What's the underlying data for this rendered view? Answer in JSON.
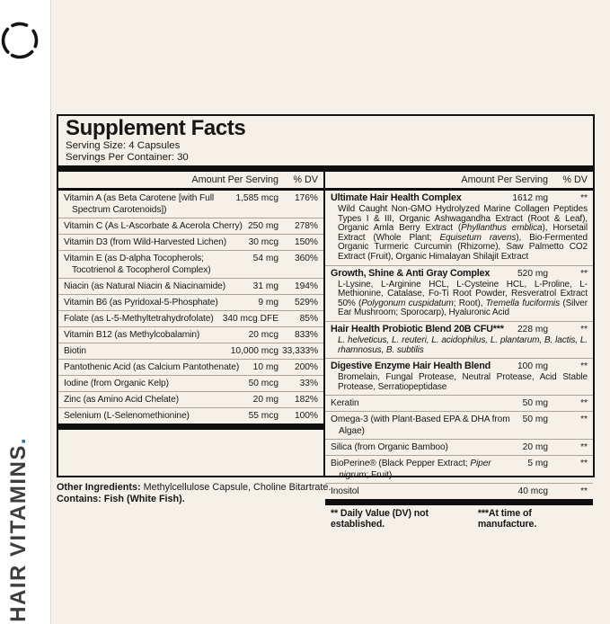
{
  "colors": {
    "background_cream": "#f6f1e8",
    "strip_white": "#ffffff",
    "accent_blue": "#2e65ae",
    "ink": "#161616"
  },
  "brand": {
    "side_label": "HAIR VITAMINS",
    "side_label_period": "."
  },
  "panel": {
    "title": "Supplement Facts",
    "serving_size": "Serving Size: 4 Capsules",
    "servings_per_container": "Servings Per Container: 30",
    "column_header": {
      "amount": "Amount Per Serving",
      "dv": "% DV"
    },
    "left_rows": [
      {
        "name": "Vitamin A (as Beta Carotene [with Full Spectrum Carotenoids])",
        "amount": "1,585 mcg",
        "dv": "176%"
      },
      {
        "name": "Vitamin C (As L-Ascorbate & Acerola Cherry)",
        "amount": "250 mg",
        "dv": "278%"
      },
      {
        "name": "Vitamin D3 (from Wild-Harvested Lichen)",
        "amount": "30 mcg",
        "dv": "150%"
      },
      {
        "name": "Vitamin E (as D-alpha Tocopherols; Tocotrienol & Tocopherol Complex)",
        "amount": "54 mg",
        "dv": "360%"
      },
      {
        "name": "Niacin (as Natural Niacin & Niacinamide)",
        "amount": "31 mg",
        "dv": "194%"
      },
      {
        "name": "Vitamin B6 (as Pyridoxal-5-Phosphate)",
        "amount": "9 mg",
        "dv": "529%"
      },
      {
        "name": "Folate (as L-5-Methyltetrahydrofolate)",
        "amount": "340 mcg DFE",
        "dv": "85%"
      },
      {
        "name": "Vitamin B12 (as Methylcobalamin)",
        "amount": "20 mcg",
        "dv": "833%"
      },
      {
        "name": "Biotin",
        "amount": "10,000 mcg",
        "dv": "33,333%"
      },
      {
        "name": "Pantothenic Acid (as Calcium Pantothenate)",
        "amount": "10 mg",
        "dv": "200%"
      },
      {
        "name": "Iodine (from Organic Kelp)",
        "amount": "50 mcg",
        "dv": "33%"
      },
      {
        "name": "Zinc (as Amino Acid Chelate)",
        "amount": "20 mg",
        "dv": "182%"
      },
      {
        "name": "Selenium (L-Selenomethionine)",
        "amount": "55 mcg",
        "dv": "100%"
      }
    ],
    "right_rows": [
      {
        "bold": true,
        "name_segments": [
          {
            "t": "Ultimate Hair Health Complex"
          }
        ],
        "amount": "1612 mg",
        "dv": "**",
        "sub_segments": [
          {
            "t": "Wild Caught Non-GMO Hydrolyzed Marine Collagen Peptides Types I & III, Organic Ashwagandha Extract (Root & Leaf), Organic Amla Berry Extract ("
          },
          {
            "t": "Phyllanthus emblica",
            "i": true
          },
          {
            "t": "), Horsetail Extract (Whole Plant; "
          },
          {
            "t": "Equisetum ravens",
            "i": true
          },
          {
            "t": "), Bio-Fermented Organic Turmeric Curcumin (Rhizome), Saw Palmetto CO2 Extract (Fruit), Organic Himalayan Shilajit Extract"
          }
        ]
      },
      {
        "bold": true,
        "name_segments": [
          {
            "t": "Growth, Shine & Anti Gray Complex"
          }
        ],
        "amount": "520 mg",
        "dv": "**",
        "sub_segments": [
          {
            "t": "L-Lysine, L-Arginine HCL, L-Cysteine HCL, L-Proline, L-Methionine, Catalase, Fo-Ti Root Powder, Resveratrol Extract 50% ("
          },
          {
            "t": "Polygonum cuspidatum",
            "i": true
          },
          {
            "t": "; Root), "
          },
          {
            "t": "Tremella fuciformis",
            "i": true
          },
          {
            "t": " (Silver Ear Mushroom; Sporocarp), Hyaluronic Acid"
          }
        ]
      },
      {
        "bold": true,
        "name_segments": [
          {
            "t": "Hair Health Probiotic Blend 20B CFU***"
          }
        ],
        "amount": "228 mg",
        "dv": "**",
        "sub_segments": [
          {
            "t": "L. helveticus, L. reuteri, L. acidophilus, L. plantarum, B. lactis, L. rhamnosus, B. subtilis",
            "i": true
          }
        ]
      },
      {
        "bold": true,
        "name_segments": [
          {
            "t": "Digestive Enzyme Hair Health Blend"
          }
        ],
        "amount": "100 mg",
        "dv": "**",
        "sub_segments": [
          {
            "t": "Bromelain, Fungal Protease, Neutral Protease, Acid Stable Protease, Serratiopeptidase"
          }
        ]
      },
      {
        "bold": false,
        "name_segments": [
          {
            "t": "Keratin"
          }
        ],
        "amount": "50 mg",
        "dv": "**"
      },
      {
        "bold": false,
        "name_segments": [
          {
            "t": "Omega-3 (with Plant-Based EPA & DHA from Algae)"
          }
        ],
        "amount": "50 mg",
        "dv": "**"
      },
      {
        "bold": false,
        "name_segments": [
          {
            "t": "Silica (from Organic Bamboo)"
          }
        ],
        "amount": "20 mg",
        "dv": "**"
      },
      {
        "bold": false,
        "name_segments": [
          {
            "t": "BioPerine® (Black Pepper Extract; "
          },
          {
            "t": "Piper nigrum",
            "i": true
          },
          {
            "t": "; Fruit)"
          }
        ],
        "amount": "5 mg",
        "dv": "**"
      },
      {
        "bold": false,
        "name_segments": [
          {
            "t": "Inositol"
          }
        ],
        "amount": "40 mcg",
        "dv": "**"
      }
    ],
    "footnote": {
      "left": "** Daily Value (DV) not established.",
      "right": "***At time of manufacture."
    }
  },
  "footer": {
    "other_ingredients_label": "Other Ingredients:",
    "other_ingredients_text": " Methylcellulose Capsule, Choline Bitartrate.",
    "contains_text": "Contains: Fish (White Fish)."
  }
}
